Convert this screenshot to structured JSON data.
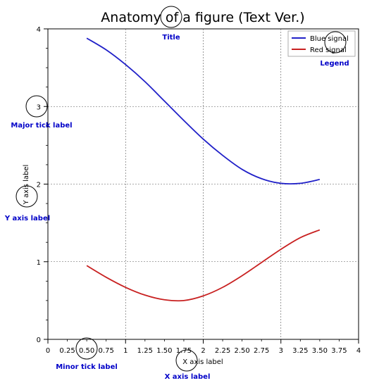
{
  "chart_data": {
    "type": "line",
    "title": "Anatomy of a figure (Text Ver.)",
    "xlabel": "X axis label",
    "ylabel": "Y axis label",
    "xlim": [
      0,
      4
    ],
    "ylim": [
      0,
      4
    ],
    "grid": true,
    "legend_position": "top-right",
    "major_x_ticks": [
      "0",
      "1",
      "2",
      "3",
      "4"
    ],
    "minor_x_ticks": [
      "0.25",
      "0.50",
      "0.75",
      "1.25",
      "1.50",
      "1.75",
      "2.25",
      "2.50",
      "2.75",
      "3.25",
      "3.50",
      "3.75"
    ],
    "major_y_ticks": [
      "0",
      "1",
      "2",
      "3",
      "4"
    ],
    "series": [
      {
        "name": "Blue signal",
        "color": "#2020c8",
        "x": [
          0.5,
          0.75,
          1.0,
          1.25,
          1.5,
          1.75,
          2.0,
          2.25,
          2.5,
          2.75,
          3.0,
          3.25,
          3.5
        ],
        "y": [
          3.88,
          3.73,
          3.54,
          3.32,
          3.07,
          2.82,
          2.58,
          2.37,
          2.19,
          2.07,
          2.01,
          2.01,
          2.06
        ]
      },
      {
        "name": "Red signal",
        "color": "#c82020",
        "x": [
          0.5,
          0.75,
          1.0,
          1.25,
          1.5,
          1.75,
          2.0,
          2.25,
          2.5,
          2.75,
          3.0,
          3.25,
          3.5
        ],
        "y": [
          0.95,
          0.8,
          0.67,
          0.57,
          0.51,
          0.5,
          0.56,
          0.67,
          0.82,
          0.99,
          1.16,
          1.31,
          1.41
        ]
      }
    ],
    "annotations": [
      {
        "key": "title",
        "text": "Title"
      },
      {
        "key": "legend",
        "text": "Legend"
      },
      {
        "key": "major_tick",
        "text": "Major tick label"
      },
      {
        "key": "y_label",
        "text": "Y axis label"
      },
      {
        "key": "minor_tick",
        "text": "Minor tick label"
      },
      {
        "key": "x_label",
        "text": "X axis label"
      }
    ]
  },
  "colors": {
    "annotation": "#0000c8",
    "grid": "#555555",
    "axes": "#000000"
  }
}
